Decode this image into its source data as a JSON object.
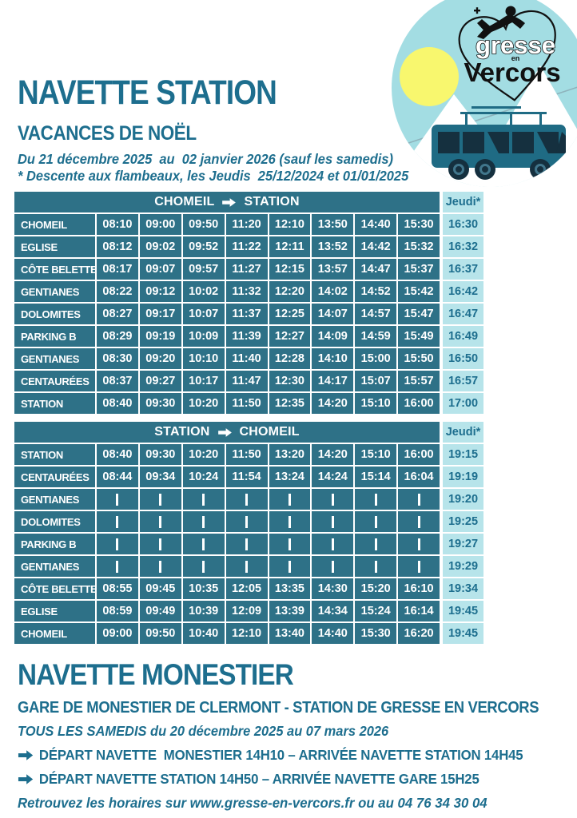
{
  "colors": {
    "teal": "#1d6e8e",
    "table_cell": "#2e7187",
    "jeudi_bg": "#b7e4ea",
    "circle_bg": "#a3dde3",
    "sun": "#f8f76e",
    "bus_body": "#1f6b84",
    "bus_dark": "#15303f",
    "logo_black": "#111111"
  },
  "logo": {
    "brand_top": "gresse",
    "brand_mid": "en",
    "brand_bottom": "Vercors"
  },
  "header": {
    "title": "NAVETTE STATION",
    "subtitle": "VACANCES DE NOËL",
    "date_line": "Du 21 décembre 2025  au  02 janvier 2026 (sauf les samedis)",
    "note_line": "* Descente aux flambeaux, les Jeudis  25/12/2024 et 01/01/2025"
  },
  "tables": [
    {
      "from": "CHOMEIL",
      "to": "STATION",
      "thursday_label": "Jeudi*",
      "rows": [
        {
          "stop": "CHOMEIL",
          "times": [
            "08:10",
            "09:00",
            "09:50",
            "11:20",
            "12:10",
            "13:50",
            "14:40",
            "15:30"
          ],
          "thursday": "16:30"
        },
        {
          "stop": "EGLISE",
          "times": [
            "08:12",
            "09:02",
            "09:52",
            "11:22",
            "12:11",
            "13:52",
            "14:42",
            "15:32"
          ],
          "thursday": "16:32"
        },
        {
          "stop": "CÔTE BELETTE",
          "times": [
            "08:17",
            "09:07",
            "09:57",
            "11:27",
            "12:15",
            "13:57",
            "14:47",
            "15:37"
          ],
          "thursday": "16:37"
        },
        {
          "stop": "GENTIANES",
          "times": [
            "08:22",
            "09:12",
            "10:02",
            "11:32",
            "12:20",
            "14:02",
            "14:52",
            "15:42"
          ],
          "thursday": "16:42"
        },
        {
          "stop": "DOLOMITES",
          "times": [
            "08:27",
            "09:17",
            "10:07",
            "11:37",
            "12:25",
            "14:07",
            "14:57",
            "15:47"
          ],
          "thursday": "16:47"
        },
        {
          "stop": "PARKING B",
          "times": [
            "08:29",
            "09:19",
            "10:09",
            "11:39",
            "12:27",
            "14:09",
            "14:59",
            "15:49"
          ],
          "thursday": "16:49"
        },
        {
          "stop": "GENTIANES",
          "times": [
            "08:30",
            "09:20",
            "10:10",
            "11:40",
            "12:28",
            "14:10",
            "15:00",
            "15:50"
          ],
          "thursday": "16:50"
        },
        {
          "stop": "CENTAURÉES",
          "times": [
            "08:37",
            "09:27",
            "10:17",
            "11:47",
            "12:30",
            "14:17",
            "15:07",
            "15:57"
          ],
          "thursday": "16:57"
        },
        {
          "stop": "STATION",
          "times": [
            "08:40",
            "09:30",
            "10:20",
            "11:50",
            "12:35",
            "14:20",
            "15:10",
            "16:00"
          ],
          "thursday": "17:00"
        }
      ]
    },
    {
      "from": "STATION",
      "to": "CHOMEIL",
      "thursday_label": "Jeudi*",
      "rows": [
        {
          "stop": "STATION",
          "times": [
            "08:40",
            "09:30",
            "10:20",
            "11:50",
            "13:20",
            "14:20",
            "15:10",
            "16:00"
          ],
          "thursday": "19:15"
        },
        {
          "stop": "CENTAURÉES",
          "times": [
            "08:44",
            "09:34",
            "10:24",
            "11:54",
            "13:24",
            "14:24",
            "15:14",
            "16:04"
          ],
          "thursday": "19:19"
        },
        {
          "stop": "GENTIANES",
          "times": [
            "|",
            "|",
            "|",
            "|",
            "|",
            "|",
            "|",
            "|"
          ],
          "thursday": "19:20"
        },
        {
          "stop": "DOLOMITES",
          "times": [
            "|",
            "|",
            "|",
            "|",
            "|",
            "|",
            "|",
            "|"
          ],
          "thursday": "19:25"
        },
        {
          "stop": "PARKING B",
          "times": [
            "|",
            "|",
            "|",
            "|",
            "|",
            "|",
            "|",
            "|"
          ],
          "thursday": "19:27"
        },
        {
          "stop": "GENTIANES",
          "times": [
            "|",
            "|",
            "|",
            "|",
            "|",
            "|",
            "|",
            "|"
          ],
          "thursday": "19:29"
        },
        {
          "stop": "CÔTE BELETTE",
          "times": [
            "08:55",
            "09:45",
            "10:35",
            "12:05",
            "13:35",
            "14:30",
            "15:20",
            "16:10"
          ],
          "thursday": "19:34"
        },
        {
          "stop": "EGLISE",
          "times": [
            "08:59",
            "09:49",
            "10:39",
            "12:09",
            "13:39",
            "14:34",
            "15:24",
            "16:14"
          ],
          "thursday": "19:45"
        },
        {
          "stop": "CHOMEIL",
          "times": [
            "09:00",
            "09:50",
            "10:40",
            "12:10",
            "13:40",
            "14:40",
            "15:30",
            "16:20"
          ],
          "thursday": "19:45"
        }
      ]
    }
  ],
  "footer": {
    "title": "NAVETTE MONESTIER",
    "subtitle": "GARE DE MONESTIER DE CLERMONT - STATION DE GRESSE EN VERCORS",
    "period": "TOUS LES SAMEDIS du 20 décembre 2025 au 07 mars 2026",
    "lines": [
      "DÉPART NAVETTE  MONESTIER 14H10 – ARRIVÉE NAVETTE STATION 14H45",
      "DÉPART NAVETTE STATION 14H50 – ARRIVÉE NAVETTE GARE 15H25"
    ],
    "contact": "Retrouvez les horaires sur www.gresse-en-vercors.fr ou au 04 76 34 30 04"
  }
}
